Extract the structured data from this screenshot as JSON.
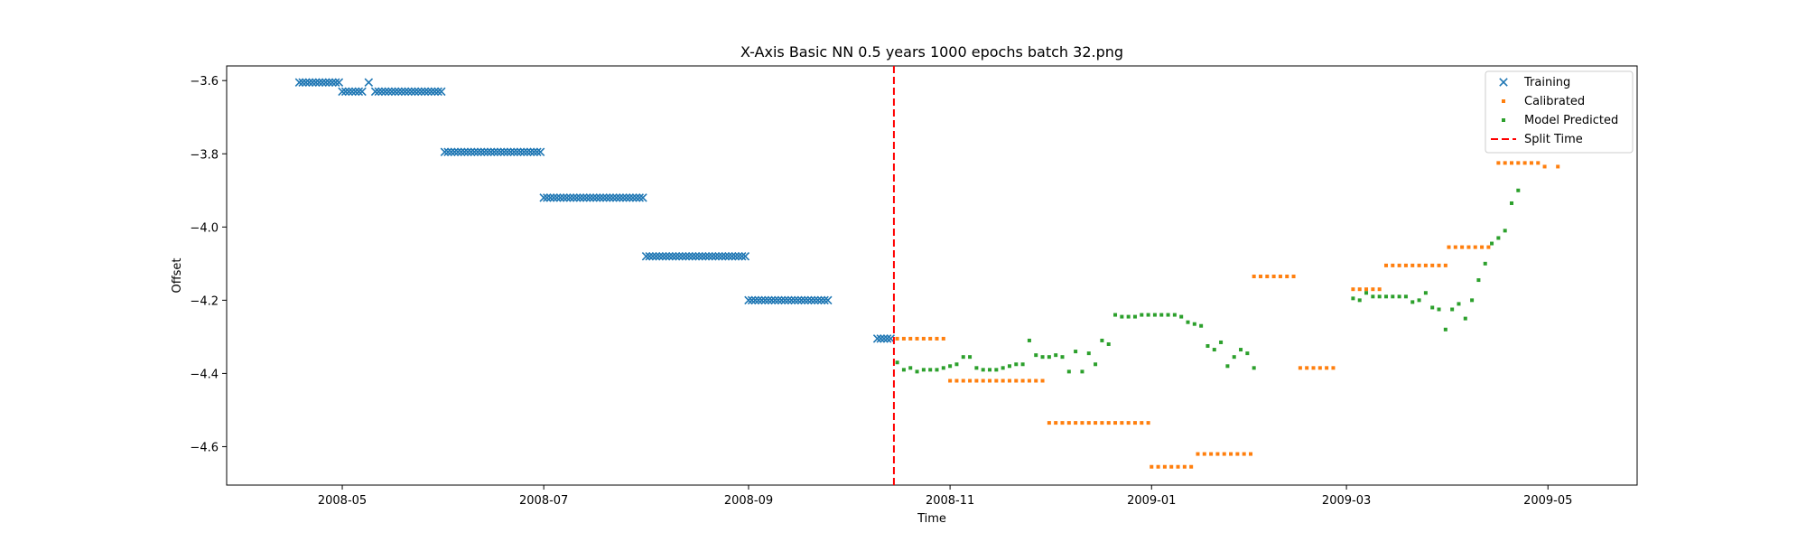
{
  "chart_data": {
    "type": "scatter",
    "title": "X-Axis Basic NN 0.5 years 1000 epochs batch 32.png",
    "xlabel": "Time",
    "ylabel": "Offset",
    "xlim": [
      "2008-03-27",
      "2009-05-28"
    ],
    "ylim": [
      -4.705,
      -3.56
    ],
    "x_ticks": [
      {
        "date": "2008-05-01",
        "label": "2008-05"
      },
      {
        "date": "2008-07-01",
        "label": "2008-07"
      },
      {
        "date": "2008-09-01",
        "label": "2008-09"
      },
      {
        "date": "2008-11-01",
        "label": "2008-11"
      },
      {
        "date": "2009-01-01",
        "label": "2009-01"
      },
      {
        "date": "2009-03-01",
        "label": "2009-03"
      },
      {
        "date": "2009-05-01",
        "label": "2009-05"
      }
    ],
    "y_ticks": [
      -3.6,
      -3.8,
      -4.0,
      -4.2,
      -4.4,
      -4.6
    ],
    "legend_position": "upper-right",
    "grid": false,
    "split_time": "2008-10-15",
    "series": [
      {
        "name": "Training",
        "marker": "x",
        "color": "#1f77b4",
        "segments": [
          {
            "start": "2008-04-18",
            "end": "2008-04-30",
            "y": -3.605
          },
          {
            "start": "2008-05-01",
            "end": "2008-05-07",
            "y": -3.63
          },
          {
            "start": "2008-05-09",
            "end": "2008-05-09",
            "y": -3.605
          },
          {
            "start": "2008-05-11",
            "end": "2008-05-31",
            "y": -3.63
          },
          {
            "start": "2008-06-01",
            "end": "2008-06-30",
            "y": -3.795
          },
          {
            "start": "2008-07-01",
            "end": "2008-07-31",
            "y": -3.92
          },
          {
            "start": "2008-08-01",
            "end": "2008-08-31",
            "y": -4.08
          },
          {
            "start": "2008-09-01",
            "end": "2008-09-25",
            "y": -4.2
          },
          {
            "start": "2008-10-10",
            "end": "2008-10-14",
            "y": -4.305
          }
        ]
      },
      {
        "name": "Calibrated",
        "marker": "dot",
        "color": "#ff7f0e",
        "segments": [
          {
            "start": "2008-10-16",
            "end": "2008-10-31",
            "y": -4.305
          },
          {
            "start": "2008-11-01",
            "end": "2008-11-30",
            "y": -4.42
          },
          {
            "start": "2008-12-01",
            "end": "2008-12-31",
            "y": -4.535
          },
          {
            "start": "2009-01-01",
            "end": "2009-01-13",
            "y": -4.655
          },
          {
            "start": "2009-01-15",
            "end": "2009-01-31",
            "y": -4.62
          },
          {
            "start": "2009-02-01",
            "end": "2009-02-13",
            "y": -4.135
          },
          {
            "start": "2009-02-15",
            "end": "2009-02-25",
            "y": -4.385
          },
          {
            "start": "2009-03-03",
            "end": "2009-03-11",
            "y": -4.17
          },
          {
            "start": "2009-03-13",
            "end": "2009-03-31",
            "y": -4.105
          },
          {
            "start": "2009-04-01",
            "end": "2009-04-14",
            "y": -4.055
          },
          {
            "start": "2009-04-16",
            "end": "2009-04-28",
            "y": -3.825
          },
          {
            "start": "2009-04-30",
            "end": "2009-04-30",
            "y": -3.835
          },
          {
            "start": "2009-05-04",
            "end": "2009-05-04",
            "y": -3.835
          }
        ]
      },
      {
        "name": "Model Predicted",
        "marker": "dot",
        "color": "#2ca02c",
        "points": [
          [
            "2008-10-16",
            -4.37
          ],
          [
            "2008-10-18",
            -4.39
          ],
          [
            "2008-10-20",
            -4.385
          ],
          [
            "2008-10-22",
            -4.395
          ],
          [
            "2008-10-24",
            -4.39
          ],
          [
            "2008-10-26",
            -4.39
          ],
          [
            "2008-10-28",
            -4.39
          ],
          [
            "2008-10-30",
            -4.385
          ],
          [
            "2008-11-01",
            -4.38
          ],
          [
            "2008-11-03",
            -4.375
          ],
          [
            "2008-11-05",
            -4.355
          ],
          [
            "2008-11-07",
            -4.355
          ],
          [
            "2008-11-09",
            -4.385
          ],
          [
            "2008-11-11",
            -4.39
          ],
          [
            "2008-11-13",
            -4.39
          ],
          [
            "2008-11-15",
            -4.39
          ],
          [
            "2008-11-17",
            -4.385
          ],
          [
            "2008-11-19",
            -4.38
          ],
          [
            "2008-11-21",
            -4.375
          ],
          [
            "2008-11-23",
            -4.375
          ],
          [
            "2008-11-25",
            -4.31
          ],
          [
            "2008-11-27",
            -4.35
          ],
          [
            "2008-11-29",
            -4.355
          ],
          [
            "2008-12-01",
            -4.355
          ],
          [
            "2008-12-03",
            -4.35
          ],
          [
            "2008-12-05",
            -4.355
          ],
          [
            "2008-12-07",
            -4.395
          ],
          [
            "2008-12-09",
            -4.34
          ],
          [
            "2008-12-11",
            -4.395
          ],
          [
            "2008-12-13",
            -4.345
          ],
          [
            "2008-12-15",
            -4.375
          ],
          [
            "2008-12-17",
            -4.31
          ],
          [
            "2008-12-19",
            -4.32
          ],
          [
            "2008-12-21",
            -4.24
          ],
          [
            "2008-12-23",
            -4.245
          ],
          [
            "2008-12-25",
            -4.245
          ],
          [
            "2008-12-27",
            -4.245
          ],
          [
            "2008-12-29",
            -4.24
          ],
          [
            "2008-12-31",
            -4.24
          ],
          [
            "2009-01-02",
            -4.24
          ],
          [
            "2009-01-04",
            -4.24
          ],
          [
            "2009-01-06",
            -4.24
          ],
          [
            "2009-01-08",
            -4.24
          ],
          [
            "2009-01-10",
            -4.245
          ],
          [
            "2009-01-12",
            -4.26
          ],
          [
            "2009-01-14",
            -4.265
          ],
          [
            "2009-01-16",
            -4.27
          ],
          [
            "2009-01-18",
            -4.325
          ],
          [
            "2009-01-20",
            -4.335
          ],
          [
            "2009-01-22",
            -4.315
          ],
          [
            "2009-01-24",
            -4.38
          ],
          [
            "2009-01-26",
            -4.355
          ],
          [
            "2009-01-28",
            -4.335
          ],
          [
            "2009-01-30",
            -4.345
          ],
          [
            "2009-02-01",
            -4.385
          ],
          [
            "2009-03-03",
            -4.195
          ],
          [
            "2009-03-05",
            -4.2
          ],
          [
            "2009-03-07",
            -4.18
          ],
          [
            "2009-03-09",
            -4.19
          ],
          [
            "2009-03-11",
            -4.19
          ],
          [
            "2009-03-13",
            -4.19
          ],
          [
            "2009-03-15",
            -4.19
          ],
          [
            "2009-03-17",
            -4.19
          ],
          [
            "2009-03-19",
            -4.19
          ],
          [
            "2009-03-21",
            -4.205
          ],
          [
            "2009-03-23",
            -4.2
          ],
          [
            "2009-03-25",
            -4.18
          ],
          [
            "2009-03-27",
            -4.22
          ],
          [
            "2009-03-29",
            -4.225
          ],
          [
            "2009-03-31",
            -4.28
          ],
          [
            "2009-04-02",
            -4.225
          ],
          [
            "2009-04-04",
            -4.21
          ],
          [
            "2009-04-06",
            -4.25
          ],
          [
            "2009-04-08",
            -4.2
          ],
          [
            "2009-04-10",
            -4.145
          ],
          [
            "2009-04-12",
            -4.1
          ],
          [
            "2009-04-14",
            -4.045
          ],
          [
            "2009-04-16",
            -4.03
          ],
          [
            "2009-04-18",
            -4.01
          ],
          [
            "2009-04-20",
            -3.935
          ],
          [
            "2009-04-22",
            -3.9
          ]
        ]
      },
      {
        "name": "Split Time",
        "marker": "dashed-line",
        "color": "#ff0000"
      }
    ]
  }
}
